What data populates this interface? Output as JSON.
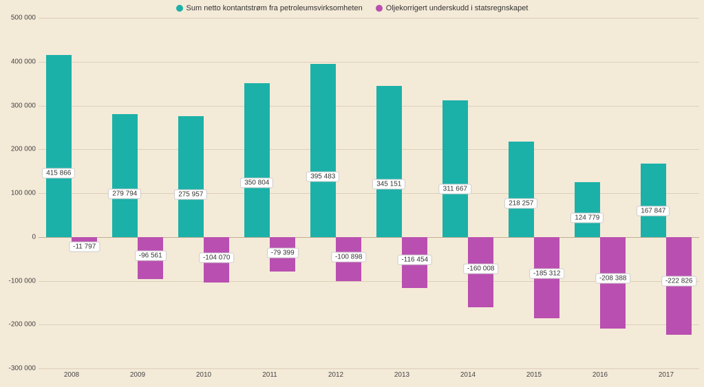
{
  "chart": {
    "type": "bar",
    "background_color": "#f4ead8",
    "grid_color": "#dccfb8",
    "zero_line_color": "#bfae90",
    "ylim": [
      -300000,
      500000
    ],
    "ytick_step": 100000,
    "yticks": [
      {
        "v": -300000,
        "label": "-300 000"
      },
      {
        "v": -200000,
        "label": "-200 000"
      },
      {
        "v": -100000,
        "label": "-100 000"
      },
      {
        "v": 0,
        "label": "0"
      },
      {
        "v": 100000,
        "label": "100 000"
      },
      {
        "v": 200000,
        "label": "200 000"
      },
      {
        "v": 300000,
        "label": "300 000"
      },
      {
        "v": 400000,
        "label": "400 000"
      },
      {
        "v": 500000,
        "label": "500 000"
      }
    ],
    "categories": [
      "2008",
      "2009",
      "2010",
      "2011",
      "2012",
      "2013",
      "2014",
      "2015",
      "2016",
      "2017"
    ],
    "series": [
      {
        "name": "Sum netto kontantstrøm fra petroleumsvirksomheten",
        "color": "#1bb1a8",
        "values": [
          415866,
          279794,
          275957,
          350804,
          395483,
          345151,
          311667,
          218257,
          124779,
          167847
        ],
        "labels": [
          "415 866",
          "279 794",
          "275 957",
          "350 804",
          "395 483",
          "345 151",
          "311 667",
          "218 257",
          "124 779",
          "167 847"
        ]
      },
      {
        "name": "Oljekorrigert underskudd i statsregnskapet",
        "color": "#b94fb0",
        "values": [
          -11797,
          -96561,
          -104070,
          -79399,
          -100898,
          -116454,
          -160008,
          -185312,
          -208388,
          -222826
        ],
        "labels": [
          "-11 797",
          "-96 561",
          "-104 070",
          "-79 399",
          "-100 898",
          "-116 454",
          "-160 008",
          "-185 312",
          "-208 388",
          "-222 826"
        ]
      }
    ],
    "legend_fontsize": 11,
    "axis_fontsize": 10,
    "label_fontsize": 10,
    "bar_group_width": 0.78
  }
}
